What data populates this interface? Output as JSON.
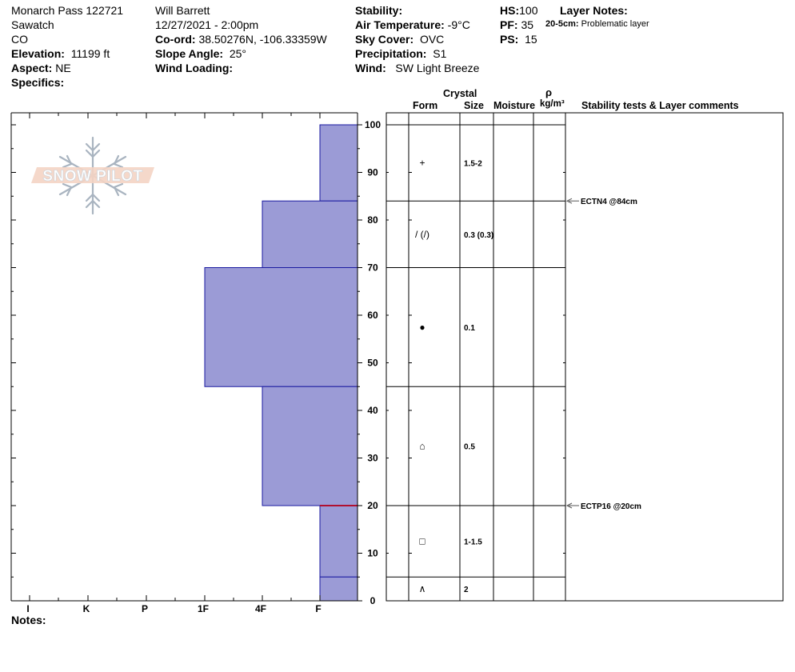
{
  "header": {
    "location": "Monarch Pass 122721",
    "range": "Sawatch",
    "state": "CO",
    "elevation_label": "Elevation:",
    "elevation": "11199 ft",
    "aspect_label": "Aspect:",
    "aspect": "NE",
    "specifics_label": "Specifics:",
    "observer": "Will  Barrett",
    "datetime": "12/27/2021 - 2:00pm",
    "coord_label": "Co-ord:",
    "coord": "38.50276N, -106.33359W",
    "slope_label": "Slope Angle:",
    "slope": "25°",
    "wind_loading_label": "Wind Loading:",
    "stability_label": "Stability:",
    "air_temp_label": "Air Temperature:",
    "air_temp": "-9°C",
    "sky_label": "Sky Cover:",
    "sky": "OVC",
    "precip_label": "Precipitation:",
    "precip": "S1",
    "wind_label": "Wind:",
    "wind": "SW Light Breeze",
    "hs_label": "HS:",
    "hs": "100",
    "pf_label": "PF:",
    "pf": "35",
    "ps_label": "PS:",
    "ps": "15",
    "layer_notes_label": "Layer Notes:",
    "layer_note_depth": "20-5cm:",
    "layer_note_text": "Problematic layer"
  },
  "logo_text": "SNOW PILOT",
  "notes_label": "Notes:",
  "columns": {
    "crystal": "Crystal",
    "form": "Form",
    "size": "Size",
    "moisture": "Moisture",
    "rho": "ρ",
    "density_unit": "kg/m³",
    "stability": "Stability tests & Layer comments"
  },
  "chart_data": {
    "type": "bar",
    "hardness_ticks": [
      "I",
      "K",
      "P",
      "1F",
      "4F",
      "F"
    ],
    "depth_ticks": [
      100,
      90,
      80,
      70,
      60,
      50,
      40,
      30,
      20,
      10,
      0
    ],
    "ylim": [
      0,
      103
    ],
    "ylabel": "",
    "layers": [
      {
        "top": 100,
        "bottom": 84,
        "hardness": "F",
        "form": "+",
        "size": "1.5-2"
      },
      {
        "top": 84,
        "bottom": 70,
        "hardness": "4F",
        "form": "/ (/)",
        "size": "0.3 (0.3)"
      },
      {
        "top": 70,
        "bottom": 45,
        "hardness": "1F",
        "form": "●",
        "size": "0.1"
      },
      {
        "top": 45,
        "bottom": 20,
        "hardness": "4F",
        "form": "⌂",
        "size": "0.5"
      },
      {
        "top": 20,
        "bottom": 5,
        "hardness": "F",
        "form": "□",
        "size": "1-1.5"
      },
      {
        "top": 5,
        "bottom": 0,
        "hardness": "F",
        "form": "∧",
        "size": "2"
      }
    ],
    "highlight_depth": 20,
    "stability_tests": [
      {
        "depth": 84,
        "label": "ECTN4 @84cm"
      },
      {
        "depth": 20,
        "label": "ECTP16 @20cm"
      }
    ],
    "colors": {
      "layer_fill": "#9b9bd6",
      "layer_stroke": "#1a1aa0",
      "highlight": "#b01030"
    }
  }
}
